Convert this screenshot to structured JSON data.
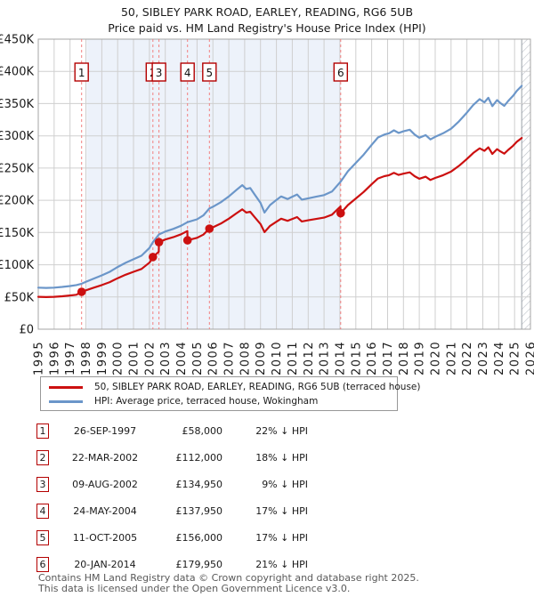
{
  "chart_data": {
    "type": "line",
    "title": "50, SIBLEY PARK ROAD, EARLEY, READING, RG6 5UB",
    "subtitle": "Price paid vs. HM Land Registry's House Price Index (HPI)",
    "grid": true,
    "legend_position": "bottom",
    "x_axis": {
      "min": 1995,
      "max": 2026,
      "ticks": [
        1995,
        1996,
        1997,
        1998,
        1999,
        2000,
        2001,
        2002,
        2003,
        2004,
        2005,
        2006,
        2007,
        2008,
        2009,
        2010,
        2011,
        2012,
        2013,
        2014,
        2015,
        2016,
        2017,
        2018,
        2019,
        2020,
        2021,
        2022,
        2023,
        2024,
        2025,
        2026
      ]
    },
    "y_axis": {
      "min": 0,
      "max": 450000,
      "tick_step": 50000,
      "tick_labels": [
        "£0",
        "£50K",
        "£100K",
        "£150K",
        "£200K",
        "£250K",
        "£300K",
        "£350K",
        "£400K",
        "£450K"
      ]
    },
    "shade_region": {
      "from_year": 1998.05,
      "to_year": 2014.05,
      "color": "#edf2fa"
    },
    "future_hatch_from_year": 2025.45,
    "marker_color": "#cc1010",
    "sale_line_color": "#f28080",
    "sale_box_border_color": "#b30000",
    "series": [
      {
        "name": "HPI: Average price, terraced house, Wokingham",
        "color": "#6b96c9",
        "x": [
          1995.0,
          1995.5,
          1996.0,
          1996.5,
          1997.0,
          1997.4,
          1997.73,
          1998.0,
          1998.5,
          1999.0,
          1999.5,
          2000.0,
          2000.5,
          2001.0,
          2001.5,
          2002.0,
          2002.22,
          2002.6,
          2003.0,
          2003.5,
          2004.0,
          2004.4,
          2005.0,
          2005.4,
          2005.78,
          2006.0,
          2006.5,
          2007.0,
          2007.5,
          2007.85,
          2008.1,
          2008.35,
          2008.6,
          2009.0,
          2009.25,
          2009.6,
          2010.0,
          2010.3,
          2010.7,
          2011.0,
          2011.3,
          2011.6,
          2012.0,
          2012.5,
          2013.0,
          2013.5,
          2014.05,
          2014.5,
          2015.0,
          2015.5,
          2016.0,
          2016.4,
          2016.8,
          2017.1,
          2017.4,
          2017.7,
          2018.0,
          2018.4,
          2018.7,
          2019.0,
          2019.4,
          2019.7,
          2020.0,
          2020.5,
          2021.0,
          2021.5,
          2022.0,
          2022.4,
          2022.8,
          2023.1,
          2023.35,
          2023.6,
          2023.9,
          2024.1,
          2024.35,
          2024.6,
          2024.9,
          2025.15,
          2025.45
        ],
        "values": [
          64500,
          64000,
          64500,
          65500,
          67000,
          68500,
          70500,
          73500,
          78500,
          83500,
          89000,
          96500,
          103000,
          108500,
          114000,
          126000,
          135000,
          147000,
          151500,
          155500,
          160500,
          166000,
          170500,
          176500,
          187500,
          190000,
          197000,
          206000,
          216500,
          223500,
          217500,
          219000,
          210000,
          196000,
          181000,
          192500,
          200500,
          206000,
          202000,
          205500,
          209000,
          201000,
          203000,
          205500,
          208000,
          213500,
          229000,
          245000,
          258000,
          271000,
          286000,
          297500,
          302000,
          304000,
          308500,
          304500,
          307000,
          309500,
          302000,
          297000,
          301000,
          294500,
          298500,
          304000,
          311000,
          322500,
          336000,
          348000,
          357000,
          352000,
          359000,
          346000,
          355500,
          351000,
          346500,
          354000,
          362000,
          370000,
          377500
        ]
      },
      {
        "name": "50, SIBLEY PARK ROAD, EARLEY, READING, RG6 5UB (terraced house)",
        "color": "#cc1010",
        "x": [
          1995.0,
          1995.5,
          1996.0,
          1996.5,
          1997.0,
          1997.4,
          1997.73,
          1998.0,
          1998.5,
          1999.0,
          1999.5,
          2000.0,
          2000.5,
          2001.0,
          2001.5,
          2002.0,
          2002.21,
          2002.22,
          2002.59,
          2002.6,
          2003.0,
          2003.5,
          2004.0,
          2004.39,
          2004.4,
          2005.0,
          2005.4,
          2005.78,
          2006.0,
          2006.5,
          2007.0,
          2007.5,
          2007.85,
          2008.1,
          2008.35,
          2008.6,
          2009.0,
          2009.25,
          2009.6,
          2010.0,
          2010.3,
          2010.7,
          2011.0,
          2011.3,
          2011.6,
          2012.0,
          2012.5,
          2013.0,
          2013.5,
          2014.04,
          2014.05,
          2014.5,
          2015.0,
          2015.5,
          2016.0,
          2016.4,
          2016.8,
          2017.1,
          2017.4,
          2017.7,
          2018.0,
          2018.4,
          2018.7,
          2019.0,
          2019.4,
          2019.7,
          2020.0,
          2020.5,
          2021.0,
          2021.5,
          2022.0,
          2022.4,
          2022.8,
          2023.1,
          2023.35,
          2023.6,
          2023.9,
          2024.1,
          2024.35,
          2024.6,
          2024.9,
          2025.15,
          2025.45
        ],
        "values": [
          50300,
          49900,
          50300,
          51100,
          52300,
          53400,
          58000,
          60300,
          64400,
          68500,
          73000,
          79100,
          84500,
          89000,
          93500,
          103300,
          110700,
          112000,
          120200,
          134950,
          139100,
          142700,
          147300,
          152300,
          137950,
          141700,
          146700,
          156000,
          158100,
          163900,
          171400,
          180100,
          185900,
          181000,
          182200,
          174700,
          163100,
          150600,
          160200,
          166800,
          171400,
          168100,
          171000,
          173900,
          167200,
          168900,
          171000,
          173100,
          177600,
          190500,
          179950,
          192600,
          202800,
          213000,
          224800,
          233800,
          237400,
          238900,
          242500,
          239300,
          241300,
          243300,
          237400,
          233400,
          236600,
          231500,
          234600,
          238900,
          244400,
          253500,
          264100,
          273500,
          280600,
          276700,
          282200,
          271900,
          279400,
          275900,
          272400,
          278200,
          284500,
          290800,
          296700
        ]
      }
    ],
    "sales": [
      {
        "label": "1",
        "year": 1997.73,
        "price": 58000
      },
      {
        "label": "2",
        "year": 2002.22,
        "price": 112000
      },
      {
        "label": "3",
        "year": 2002.6,
        "price": 134950
      },
      {
        "label": "4",
        "year": 2004.4,
        "price": 137950
      },
      {
        "label": "5",
        "year": 2005.78,
        "price": 156000
      },
      {
        "label": "6",
        "year": 2014.05,
        "price": 179950
      }
    ]
  },
  "legend": {
    "items": [
      {
        "label": "50, SIBLEY PARK ROAD, EARLEY, READING, RG6 5UB (terraced house)",
        "color": "#cc1010"
      },
      {
        "label": "HPI: Average price, terraced house, Wokingham",
        "color": "#6b96c9"
      }
    ]
  },
  "sales_table": {
    "rows": [
      {
        "num": "1",
        "date": "26-SEP-1997",
        "price": "£58,000",
        "vs_hpi": "22% ↓ HPI"
      },
      {
        "num": "2",
        "date": "22-MAR-2002",
        "price": "£112,000",
        "vs_hpi": "18% ↓ HPI"
      },
      {
        "num": "3",
        "date": "09-AUG-2002",
        "price": "£134,950",
        "vs_hpi": "9% ↓ HPI"
      },
      {
        "num": "4",
        "date": "24-MAY-2004",
        "price": "£137,950",
        "vs_hpi": "17% ↓ HPI"
      },
      {
        "num": "5",
        "date": "11-OCT-2005",
        "price": "£156,000",
        "vs_hpi": "17% ↓ HPI"
      },
      {
        "num": "6",
        "date": "20-JAN-2014",
        "price": "£179,950",
        "vs_hpi": "21% ↓ HPI"
      }
    ]
  },
  "footer": {
    "line1": "Contains HM Land Registry data © Crown copyright and database right 2025.",
    "line2": "This data is licensed under the Open Government Licence v3.0."
  }
}
